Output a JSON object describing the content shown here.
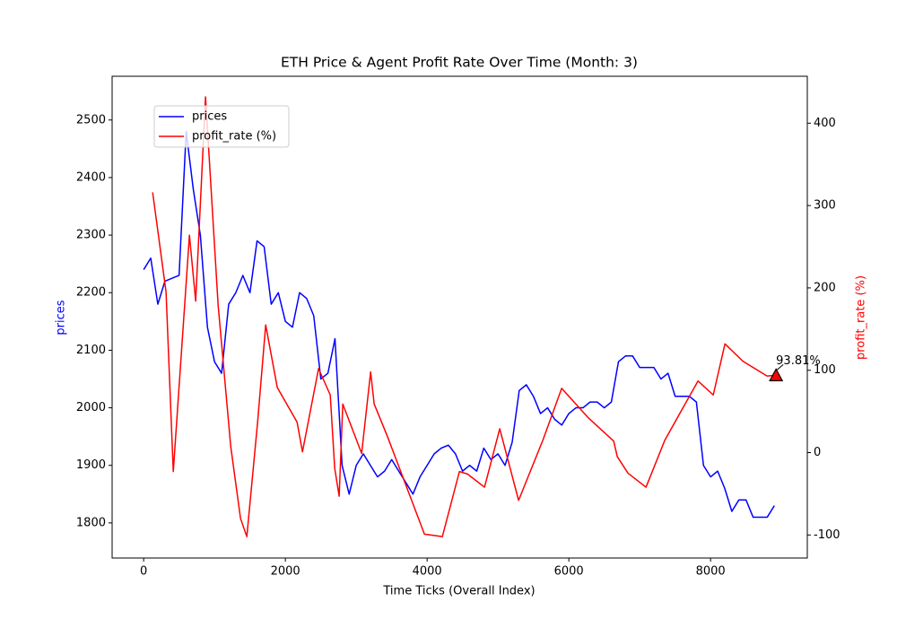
{
  "chart_data": {
    "type": "line",
    "title": "ETH Price & Agent Profit Rate Over Time (Month: 3)",
    "x_label": "Time Ticks (Overall Index)",
    "y_label": "prices",
    "y2_label": "profit_rate (%)",
    "xlim": [
      -445,
      9365
    ],
    "xticks": [
      0,
      2000,
      4000,
      6000,
      8000
    ],
    "ylim": [
      1739,
      2576
    ],
    "yticks": [
      1800,
      1900,
      2000,
      2100,
      2200,
      2300,
      2400,
      2500
    ],
    "y2lim": [
      -128,
      457
    ],
    "y2ticks": [
      -100,
      0,
      100,
      200,
      300,
      400
    ],
    "legend": "upper left",
    "series": [
      {
        "name": "prices",
        "color": "#0000ff",
        "axis": "y",
        "x": [
          0,
          100,
          200,
          300,
          400,
          500,
          600,
          700,
          800,
          900,
          1000,
          1100,
          1200,
          1300,
          1400,
          1500,
          1600,
          1700,
          1800,
          1900,
          2000,
          2100,
          2200,
          2300,
          2400,
          2500,
          2600,
          2700,
          2800,
          2900,
          3000,
          3100,
          3200,
          3300,
          3400,
          3500,
          3600,
          3700,
          3800,
          3900,
          4000,
          4100,
          4200,
          4300,
          4400,
          4500,
          4600,
          4700,
          4800,
          4900,
          5000,
          5100,
          5200,
          5300,
          5400,
          5500,
          5600,
          5700,
          5800,
          5900,
          6000,
          6100,
          6200,
          6300,
          6400,
          6500,
          6600,
          6700,
          6800,
          6900,
          7000,
          7100,
          7200,
          7300,
          7400,
          7500,
          7600,
          7700,
          7800,
          7900,
          8000,
          8100,
          8200,
          8300,
          8400,
          8500,
          8600,
          8700,
          8800,
          8900
        ],
        "values": [
          2240,
          2260,
          2180,
          2220,
          2225,
          2230,
          2480,
          2380,
          2300,
          2140,
          2080,
          2060,
          2180,
          2200,
          2230,
          2200,
          2290,
          2280,
          2180,
          2200,
          2150,
          2140,
          2200,
          2190,
          2160,
          2050,
          2060,
          2120,
          1900,
          1850,
          1900,
          1920,
          1900,
          1880,
          1890,
          1910,
          1890,
          1870,
          1850,
          1880,
          1900,
          1920,
          1930,
          1935,
          1920,
          1890,
          1900,
          1890,
          1930,
          1910,
          1920,
          1900,
          1940,
          2030,
          2040,
          2020,
          1990,
          2000,
          1980,
          1970,
          1990,
          2000,
          2000,
          2010,
          2010,
          2000,
          2010,
          2080,
          2090,
          2090,
          2070,
          2070,
          2070,
          2050,
          2060,
          2020,
          2020,
          2020,
          2010,
          1900,
          1880,
          1890,
          1860,
          1820,
          1840,
          1840,
          1810,
          1810,
          1810,
          1830
        ]
      },
      {
        "name": "profit_rate (%)",
        "color": "#ff0000",
        "axis": "y2",
        "x": [
          127,
          316,
          418,
          646,
          734,
          873,
          1051,
          1228,
          1367,
          1456,
          1608,
          1722,
          1886,
          2165,
          2241,
          2468,
          2633,
          2696,
          2759,
          2810,
          3076,
          3203,
          3253,
          3443,
          3962,
          4215,
          4456,
          4570,
          4810,
          5025,
          5291,
          5633,
          5899,
          6278,
          6633,
          6684,
          6835,
          7089,
          7354,
          7823,
          8038,
          8203,
          8456,
          8797,
          8924
        ],
        "values": [
          316,
          195,
          -23,
          264,
          184,
          432,
          179,
          8,
          -80,
          -102,
          37,
          155,
          79,
          37,
          1,
          102,
          70,
          -19,
          -53,
          59,
          -1,
          98,
          59,
          19,
          -99,
          -102,
          -23,
          -26,
          -42,
          29,
          -58,
          15,
          78,
          42,
          14,
          -5,
          -25,
          -42,
          15,
          87,
          70,
          132,
          111,
          93,
          93.81
        ]
      }
    ],
    "annotation": {
      "x": 8924,
      "value": 93.81,
      "label": "93.81%"
    }
  }
}
